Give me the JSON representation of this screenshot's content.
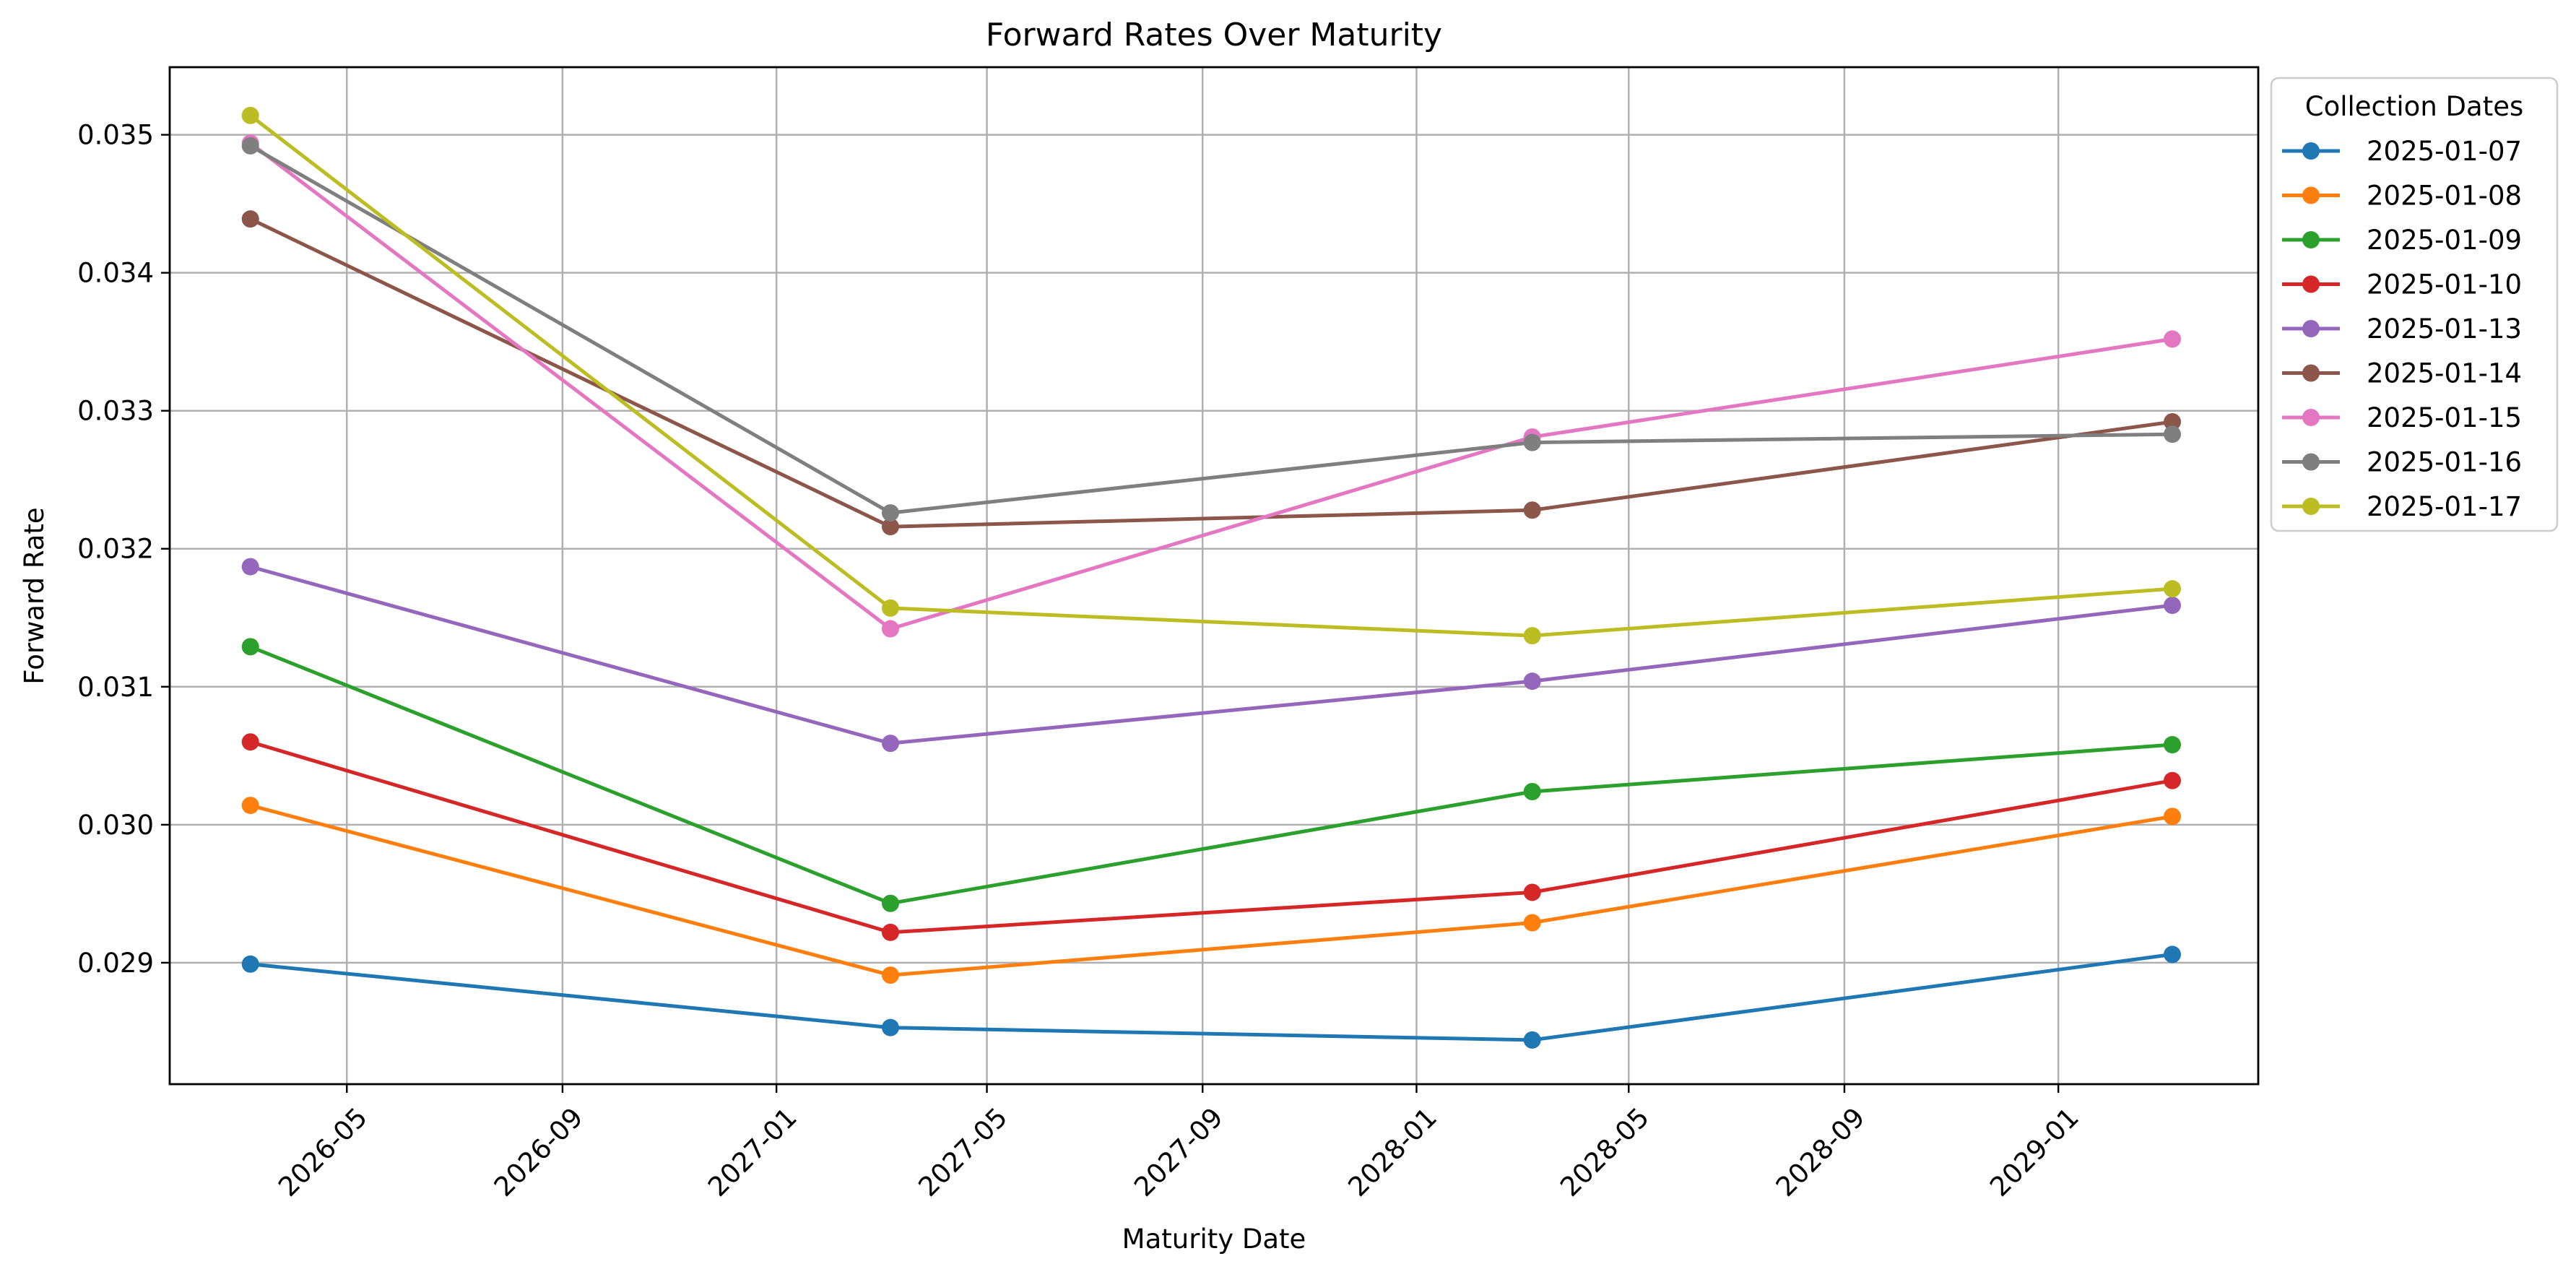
{
  "chart_data": {
    "type": "line",
    "title": "Forward Rates Over Maturity",
    "xlabel": "Maturity Date",
    "ylabel": "Forward Rate",
    "x_type": "date",
    "x": [
      "2026-03-07",
      "2027-03-07",
      "2028-03-07",
      "2029-03-07"
    ],
    "xlim": [
      "2026-01-20",
      "2029-04-25"
    ],
    "ylim": [
      0.02812,
      0.03549
    ],
    "x_ticks": [
      "2026-05",
      "2026-09",
      "2027-01",
      "2027-05",
      "2027-09",
      "2028-01",
      "2028-05",
      "2028-09",
      "2029-01"
    ],
    "x_tick_dates": [
      "2026-05-01",
      "2026-09-01",
      "2027-01-01",
      "2027-05-01",
      "2027-09-01",
      "2028-01-01",
      "2028-05-01",
      "2028-09-01",
      "2029-01-01"
    ],
    "y_ticks": [
      "0.029",
      "0.030",
      "0.031",
      "0.032",
      "0.033",
      "0.034",
      "0.035"
    ],
    "grid": true,
    "legend": {
      "title": "Collection Dates",
      "placement": "outside right, top"
    },
    "series": [
      {
        "name": "2025-01-07",
        "color": "#1f77b4",
        "values": [
          0.02899,
          0.02853,
          0.02844,
          0.02906
        ]
      },
      {
        "name": "2025-01-08",
        "color": "#ff7f0e",
        "values": [
          0.03014,
          0.02891,
          0.02929,
          0.03006
        ]
      },
      {
        "name": "2025-01-09",
        "color": "#2ca02c",
        "values": [
          0.03129,
          0.02943,
          0.03024,
          0.03058
        ]
      },
      {
        "name": "2025-01-10",
        "color": "#d62728",
        "values": [
          0.0306,
          0.02922,
          0.02951,
          0.03032
        ]
      },
      {
        "name": "2025-01-13",
        "color": "#9467bd",
        "values": [
          0.03187,
          0.03059,
          0.03104,
          0.03159
        ]
      },
      {
        "name": "2025-01-14",
        "color": "#8c564b",
        "values": [
          0.03439,
          0.03216,
          0.03228,
          0.03292
        ]
      },
      {
        "name": "2025-01-15",
        "color": "#e377c2",
        "values": [
          0.03494,
          0.03142,
          0.03281,
          0.03352
        ]
      },
      {
        "name": "2025-01-16",
        "color": "#7f7f7f",
        "values": [
          0.03492,
          0.03226,
          0.03277,
          0.03283
        ]
      },
      {
        "name": "2025-01-17",
        "color": "#bcbd22",
        "values": [
          0.03514,
          0.03157,
          0.03137,
          0.03171
        ]
      }
    ]
  }
}
